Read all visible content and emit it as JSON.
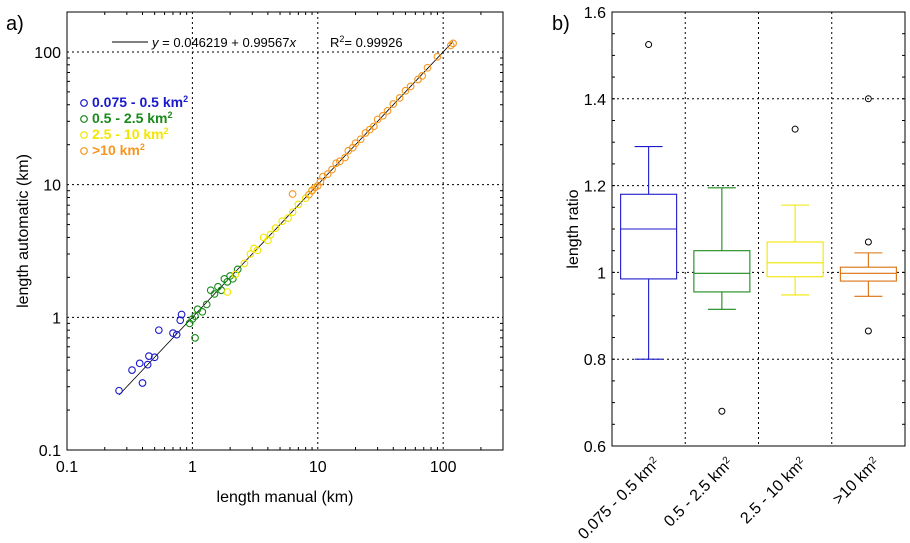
{
  "chart_data": [
    {
      "panel_label": "a)",
      "type": "scatter",
      "xlabel": "length manual (km)",
      "ylabel": "length automatic (km)",
      "xscale": "log",
      "yscale": "log",
      "xlim": [
        0.1,
        300
      ],
      "ylim": [
        0.1,
        200
      ],
      "x_ticks": [
        0.1,
        1,
        10,
        100
      ],
      "x_tick_labels": [
        "0.1",
        "1",
        "10",
        "100"
      ],
      "y_ticks": [
        0.1,
        1,
        10,
        100
      ],
      "y_tick_labels": [
        "0.1",
        "1",
        "10",
        "100"
      ],
      "grid": true,
      "legend_position": "top-left",
      "fit": {
        "equation": "y = 0.046219 + 0.99567x",
        "r2_label": "R²= 0.99926",
        "x_range": [
          0.26,
          120
        ]
      },
      "series": [
        {
          "name": "0.075 - 0.5 km²",
          "color": "#1a1acc",
          "points": [
            [
              0.26,
              0.28
            ],
            [
              0.33,
              0.4
            ],
            [
              0.38,
              0.45
            ],
            [
              0.4,
              0.32
            ],
            [
              0.44,
              0.44
            ],
            [
              0.45,
              0.51
            ],
            [
              0.5,
              0.5
            ],
            [
              0.54,
              0.8
            ],
            [
              0.7,
              0.76
            ],
            [
              0.75,
              0.74
            ],
            [
              0.8,
              0.95
            ],
            [
              0.82,
              1.05
            ]
          ]
        },
        {
          "name": "0.5 - 2.5 km²",
          "color": "#1a8a1a",
          "points": [
            [
              0.95,
              0.9
            ],
            [
              1.0,
              0.97
            ],
            [
              1.05,
              1.02
            ],
            [
              1.05,
              0.7
            ],
            [
              1.1,
              1.15
            ],
            [
              1.2,
              1.1
            ],
            [
              1.3,
              1.25
            ],
            [
              1.4,
              1.6
            ],
            [
              1.5,
              1.5
            ],
            [
              1.6,
              1.7
            ],
            [
              1.7,
              1.6
            ],
            [
              1.8,
              1.95
            ],
            [
              1.9,
              1.85
            ],
            [
              2.0,
              2.05
            ],
            [
              2.1,
              1.95
            ],
            [
              2.3,
              2.3
            ]
          ]
        },
        {
          "name": "2.5 - 10 km²",
          "color": "#f2e600",
          "points": [
            [
              1.9,
              1.55
            ],
            [
              2.2,
              2.1
            ],
            [
              2.6,
              2.55
            ],
            [
              2.9,
              3.0
            ],
            [
              3.1,
              3.3
            ],
            [
              3.3,
              3.2
            ],
            [
              3.7,
              4.0
            ],
            [
              4.0,
              3.8
            ],
            [
              4.2,
              4.2
            ],
            [
              4.6,
              4.7
            ],
            [
              5.2,
              5.3
            ],
            [
              5.8,
              5.6
            ],
            [
              6.3,
              6.2
            ],
            [
              7.0,
              7.1
            ],
            [
              8.0,
              7.9
            ],
            [
              9.0,
              9.1
            ]
          ]
        },
        {
          "name": ">10 km²",
          "color": "#f7961e",
          "points": [
            [
              6.3,
              8.5
            ],
            [
              8.5,
              8.4
            ],
            [
              9.0,
              9.0
            ],
            [
              9.5,
              9.5
            ],
            [
              10.0,
              9.8
            ],
            [
              10.5,
              10.5
            ],
            [
              11.0,
              11.5
            ],
            [
              12.0,
              12.0
            ],
            [
              13.0,
              13.0
            ],
            [
              14.0,
              14.5
            ],
            [
              15.0,
              15.0
            ],
            [
              16.5,
              16.0
            ],
            [
              17.5,
              18.0
            ],
            [
              19.0,
              19.0
            ],
            [
              20.0,
              20.5
            ],
            [
              22.0,
              22.0
            ],
            [
              24.0,
              24.5
            ],
            [
              26.0,
              26.0
            ],
            [
              28.0,
              27.5
            ],
            [
              30.0,
              31.0
            ],
            [
              33.0,
              33.0
            ],
            [
              36.0,
              36.0
            ],
            [
              40.0,
              40.5
            ],
            [
              45.0,
              45.0
            ],
            [
              50.0,
              51.0
            ],
            [
              55.0,
              55.0
            ],
            [
              63.0,
              62.0
            ],
            [
              68.0,
              66.0
            ],
            [
              75.0,
              76.0
            ],
            [
              90.0,
              92.0
            ],
            [
              115.0,
              112.0
            ],
            [
              120.0,
              116.0
            ]
          ]
        }
      ]
    },
    {
      "panel_label": "b)",
      "type": "box",
      "ylabel": "length ratio",
      "ylim": [
        0.6,
        1.6
      ],
      "y_ticks": [
        0.6,
        0.8,
        1.0,
        1.2,
        1.4,
        1.6
      ],
      "y_tick_labels": [
        "0.6",
        "0.8",
        "1",
        "1.2",
        "1.4",
        "1.6"
      ],
      "grid": true,
      "categories": [
        "0.075 - 0.5 km²",
        "0.5 - 2.5 km²",
        "2.5 - 10 km²",
        ">10 km²"
      ],
      "boxes": [
        {
          "color": "#1a1acc",
          "whisker_low": 0.8,
          "q1": 0.985,
          "median": 1.1,
          "q3": 1.18,
          "whisker_high": 1.29,
          "outliers": [
            1.525
          ]
        },
        {
          "color": "#1a8a1a",
          "whisker_low": 0.915,
          "q1": 0.955,
          "median": 0.998,
          "q3": 1.05,
          "whisker_high": 1.195,
          "outliers": [
            0.68
          ]
        },
        {
          "color": "#f2e600",
          "whisker_low": 0.948,
          "q1": 0.99,
          "median": 1.022,
          "q3": 1.07,
          "whisker_high": 1.155,
          "outliers": [
            1.33
          ]
        },
        {
          "color": "#d9700f",
          "whisker_low": 0.945,
          "q1": 0.98,
          "median": 0.998,
          "q3": 1.012,
          "whisker_high": 1.045,
          "outliers": [
            1.4,
            1.07,
            0.865
          ]
        }
      ]
    }
  ]
}
